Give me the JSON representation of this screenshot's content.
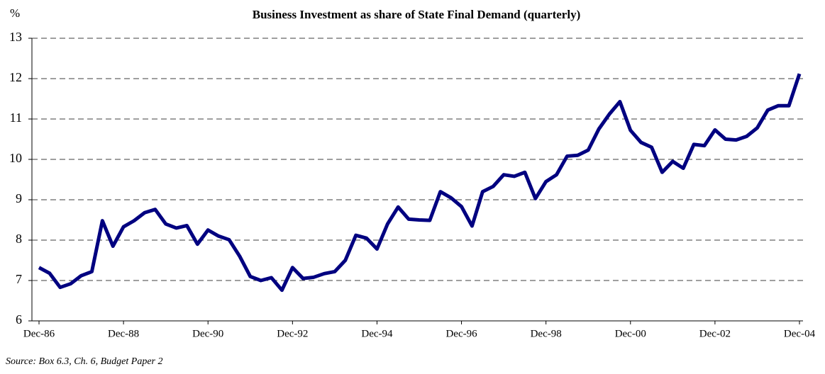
{
  "chart_data": {
    "type": "line",
    "title": "Business Investment as share of State Final Demand (quarterly)",
    "y_label": "%",
    "source": "Source: Box 6.3, Ch. 6, Budget Paper 2",
    "categories": [
      "Dec-86",
      null,
      null,
      null,
      null,
      null,
      null,
      null,
      "Dec-88",
      null,
      null,
      null,
      null,
      null,
      null,
      null,
      "Dec-90",
      null,
      null,
      null,
      null,
      null,
      null,
      null,
      "Dec-92",
      null,
      null,
      null,
      null,
      null,
      null,
      null,
      "Dec-94",
      null,
      null,
      null,
      null,
      null,
      null,
      null,
      "Dec-96",
      null,
      null,
      null,
      null,
      null,
      null,
      null,
      "Dec-98",
      null,
      null,
      null,
      null,
      null,
      null,
      null,
      "Dec-00",
      null,
      null,
      null,
      null,
      null,
      null,
      null,
      "Dec-02",
      null,
      null,
      null,
      null,
      null,
      null,
      null,
      "Dec-04"
    ],
    "series": [
      {
        "name": "Business Investment",
        "color": "#000080",
        "values": [
          7.32,
          7.18,
          6.83,
          6.92,
          7.12,
          7.22,
          8.48,
          7.85,
          8.33,
          8.48,
          8.68,
          8.76,
          8.4,
          8.3,
          8.36,
          7.9,
          8.25,
          8.1,
          8.01,
          7.6,
          7.1,
          7.0,
          7.07,
          6.76,
          7.32,
          7.05,
          7.08,
          7.17,
          7.22,
          7.5,
          8.12,
          8.05,
          7.78,
          8.4,
          8.82,
          8.52,
          8.5,
          8.49,
          9.2,
          9.05,
          8.83,
          8.35,
          9.2,
          9.33,
          9.62,
          9.58,
          9.68,
          9.03,
          9.45,
          9.62,
          10.08,
          10.1,
          10.23,
          10.75,
          11.12,
          11.43,
          10.72,
          10.42,
          10.3,
          9.68,
          9.95,
          9.78,
          10.37,
          10.34,
          10.73,
          10.5,
          10.48,
          10.57,
          10.78,
          11.22,
          11.33,
          11.33,
          12.12
        ]
      }
    ],
    "ylim": [
      6,
      13
    ],
    "yticks": [
      6,
      7,
      8,
      9,
      10,
      11,
      12,
      13
    ],
    "grid": true
  }
}
